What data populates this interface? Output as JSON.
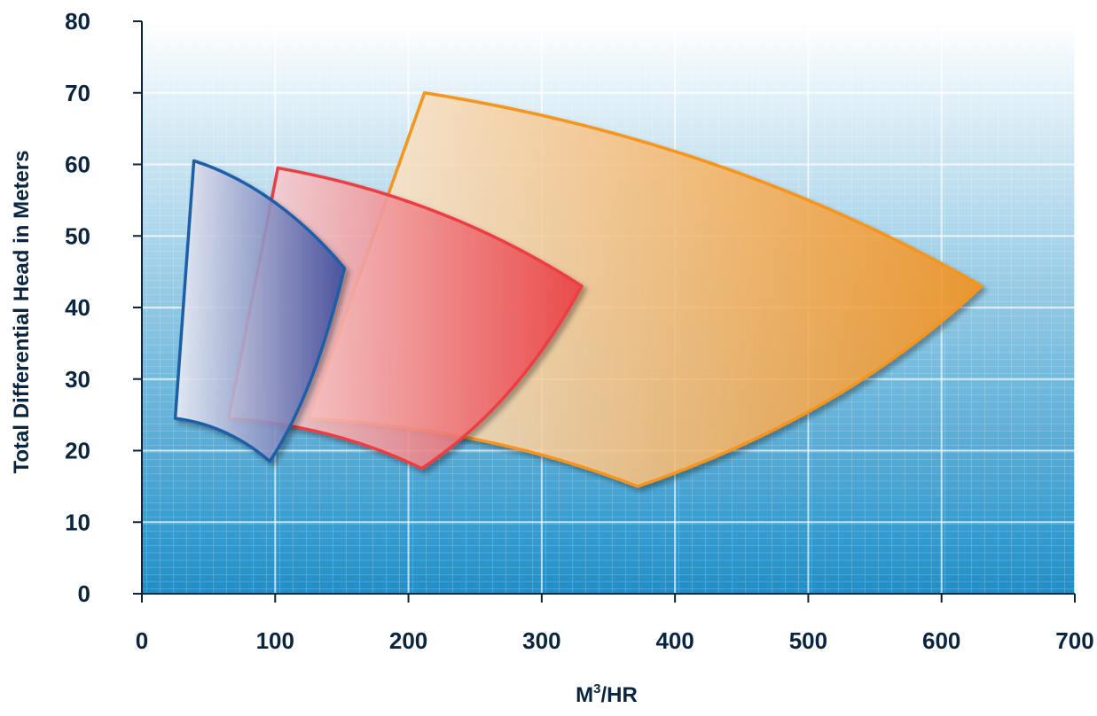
{
  "chart_data": {
    "type": "area",
    "xlabel": "M",
    "xlabel_sup": "3",
    "xlabel_suffix": "/HR",
    "ylabel": "Total Differential Head in Meters",
    "xlim": [
      0,
      700
    ],
    "ylim": [
      0,
      80
    ],
    "x_ticks": [
      "0",
      "100",
      "200",
      "300",
      "400",
      "500",
      "600",
      "700"
    ],
    "y_ticks": [
      "0",
      "10",
      "20",
      "30",
      "40",
      "50",
      "60",
      "70",
      "80"
    ],
    "grid": true,
    "colors": {
      "background_top": "#ffffff",
      "background_bottom": "#1f8fc8",
      "grid_major": "#ffffff",
      "axis": "#0a2540",
      "text": "#0a2540"
    },
    "series": [
      {
        "color": "#f7941d",
        "fill_start": "#fef1e2",
        "fill_end": "#f7941d",
        "points": [
          [
            212,
            70
          ],
          [
            630,
            43
          ],
          [
            372,
            15
          ],
          [
            125,
            24.5
          ]
        ]
      },
      {
        "color": "#ee3e42",
        "fill_start": "#fde4e6",
        "fill_end": "#ee3e42",
        "points": [
          [
            102,
            59.5
          ],
          [
            330,
            43
          ],
          [
            210,
            17.5
          ],
          [
            65,
            24.5
          ]
        ]
      },
      {
        "color": "#1e5ea8",
        "fill_start": "#f3f3fa",
        "fill_end": "#3a4a9e",
        "points": [
          [
            39,
            60.5
          ],
          [
            152,
            45.5
          ],
          [
            96,
            18.5
          ],
          [
            25,
            24.5
          ]
        ]
      }
    ]
  }
}
